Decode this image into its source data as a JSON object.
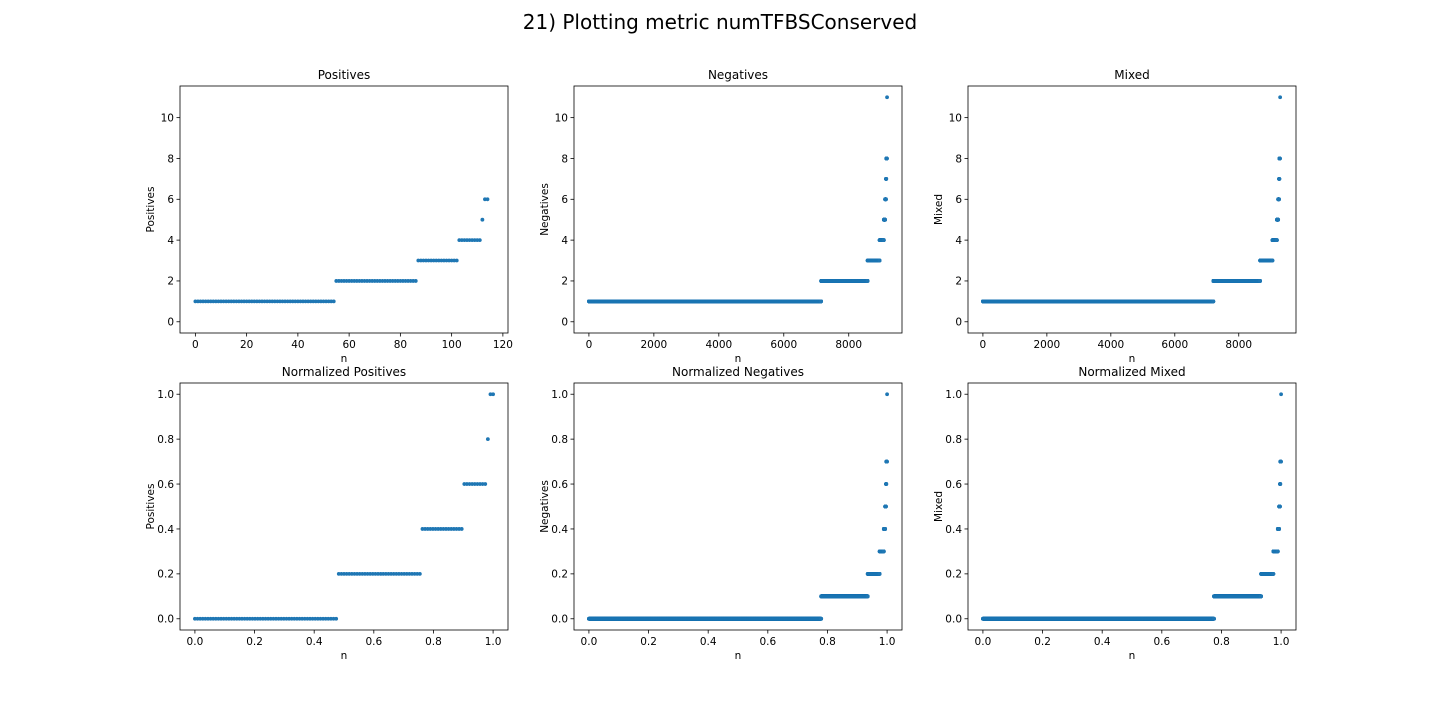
{
  "figure": {
    "title": "21) Plotting metric numTFBSConserved"
  },
  "chart_data": [
    {
      "type": "scatter",
      "title": "Positives",
      "xlabel": "n",
      "ylabel": "Positives",
      "xlim": [
        -6,
        122
      ],
      "ylim": [
        -0.55,
        11.55
      ],
      "xticks": [
        0,
        20,
        40,
        60,
        80,
        100,
        120
      ],
      "xtick_labels": [
        "0",
        "20",
        "40",
        "60",
        "80",
        "100",
        "120"
      ],
      "yticks": [
        0,
        2,
        4,
        6,
        8,
        10
      ],
      "ytick_labels": [
        "0",
        "2",
        "4",
        "6",
        "8",
        "10"
      ],
      "runs": [
        {
          "y": 1,
          "x_from": 0,
          "x_to": 54,
          "count": 55
        },
        {
          "y": 2,
          "x_from": 55,
          "x_to": 86,
          "count": 32
        },
        {
          "y": 3,
          "x_from": 87,
          "x_to": 102,
          "count": 16
        },
        {
          "y": 4,
          "x_from": 103,
          "x_to": 111,
          "count": 9
        },
        {
          "y": 5,
          "x_from": 112,
          "x_to": 112,
          "count": 1
        },
        {
          "y": 6,
          "x_from": 113,
          "x_to": 114,
          "count": 2
        }
      ],
      "grid": false,
      "color": "#1f77b4"
    },
    {
      "type": "scatter",
      "title": "Negatives",
      "xlabel": "n",
      "ylabel": "Negatives",
      "xlim": [
        -459,
        9640
      ],
      "ylim": [
        -0.55,
        11.55
      ],
      "xticks": [
        0,
        2000,
        4000,
        6000,
        8000
      ],
      "xtick_labels": [
        "0",
        "2000",
        "4000",
        "6000",
        "8000"
      ],
      "yticks": [
        0,
        2,
        4,
        6,
        8,
        10
      ],
      "ytick_labels": [
        "0",
        "2",
        "4",
        "6",
        "8",
        "10"
      ],
      "runs": [
        {
          "y": 1,
          "x_from": 0,
          "x_to": 7150,
          "count": 7151
        },
        {
          "y": 2,
          "x_from": 7151,
          "x_to": 8580,
          "count": 1430
        },
        {
          "y": 3,
          "x_from": 8581,
          "x_to": 8950,
          "count": 370
        },
        {
          "y": 4,
          "x_from": 8951,
          "x_to": 9080,
          "count": 130
        },
        {
          "y": 5,
          "x_from": 9081,
          "x_to": 9120,
          "count": 40
        },
        {
          "y": 6,
          "x_from": 9121,
          "x_to": 9145,
          "count": 25
        },
        {
          "y": 7,
          "x_from": 9146,
          "x_to": 9155,
          "count": 10
        },
        {
          "y": 8,
          "x_from": 9156,
          "x_to": 9175,
          "count": 20
        },
        {
          "y": 11,
          "x_from": 9180,
          "x_to": 9180,
          "count": 1
        }
      ],
      "grid": false,
      "color": "#1f77b4"
    },
    {
      "type": "scatter",
      "title": "Mixed",
      "xlabel": "n",
      "ylabel": "Mixed",
      "xlim": [
        -466,
        9790
      ],
      "ylim": [
        -0.55,
        11.55
      ],
      "xticks": [
        0,
        2000,
        4000,
        6000,
        8000
      ],
      "xtick_labels": [
        "0",
        "2000",
        "4000",
        "6000",
        "8000"
      ],
      "yticks": [
        0,
        2,
        4,
        6,
        8,
        10
      ],
      "ytick_labels": [
        "0",
        "2",
        "4",
        "6",
        "8",
        "10"
      ],
      "runs": [
        {
          "y": 1,
          "x_from": 0,
          "x_to": 7205,
          "count": 7206
        },
        {
          "y": 2,
          "x_from": 7206,
          "x_to": 8667,
          "count": 1462
        },
        {
          "y": 3,
          "x_from": 8668,
          "x_to": 9053,
          "count": 386
        },
        {
          "y": 4,
          "x_from": 9054,
          "x_to": 9192,
          "count": 139
        },
        {
          "y": 5,
          "x_from": 9193,
          "x_to": 9232,
          "count": 40
        },
        {
          "y": 6,
          "x_from": 9233,
          "x_to": 9259,
          "count": 27
        },
        {
          "y": 7,
          "x_from": 9260,
          "x_to": 9269,
          "count": 10
        },
        {
          "y": 8,
          "x_from": 9270,
          "x_to": 9289,
          "count": 20
        },
        {
          "y": 11,
          "x_from": 9294,
          "x_to": 9294,
          "count": 1
        }
      ],
      "grid": false,
      "color": "#1f77b4"
    },
    {
      "type": "scatter",
      "title": "Normalized Positives",
      "xlabel": "n",
      "ylabel": "Positives",
      "xlim": [
        -0.05,
        1.05
      ],
      "ylim": [
        -0.05,
        1.05
      ],
      "xticks": [
        0,
        0.2,
        0.4,
        0.6,
        0.8,
        1.0
      ],
      "xtick_labels": [
        "0.0",
        "0.2",
        "0.4",
        "0.6",
        "0.8",
        "1.0"
      ],
      "yticks": [
        0,
        0.2,
        0.4,
        0.6,
        0.8,
        1.0
      ],
      "ytick_labels": [
        "0.0",
        "0.2",
        "0.4",
        "0.6",
        "0.8",
        "1.0"
      ],
      "runs": [
        {
          "y": 0.0,
          "x_from": 0.0,
          "x_to": 0.4737,
          "count": 55
        },
        {
          "y": 0.2,
          "x_from": 0.4825,
          "x_to": 0.7544,
          "count": 32
        },
        {
          "y": 0.4,
          "x_from": 0.7632,
          "x_to": 0.8947,
          "count": 16
        },
        {
          "y": 0.6,
          "x_from": 0.9035,
          "x_to": 0.9737,
          "count": 9
        },
        {
          "y": 0.8,
          "x_from": 0.9825,
          "x_to": 0.9825,
          "count": 1
        },
        {
          "y": 1.0,
          "x_from": 0.9912,
          "x_to": 1.0,
          "count": 2
        }
      ],
      "grid": false,
      "color": "#1f77b4"
    },
    {
      "type": "scatter",
      "title": "Normalized Negatives",
      "xlabel": "n",
      "ylabel": "Negatives",
      "xlim": [
        -0.05,
        1.05
      ],
      "ylim": [
        -0.05,
        1.05
      ],
      "xticks": [
        0,
        0.2,
        0.4,
        0.6,
        0.8,
        1.0
      ],
      "xtick_labels": [
        "0.0",
        "0.2",
        "0.4",
        "0.6",
        "0.8",
        "1.0"
      ],
      "yticks": [
        0,
        0.2,
        0.4,
        0.6,
        0.8,
        1.0
      ],
      "ytick_labels": [
        "0.0",
        "0.2",
        "0.4",
        "0.6",
        "0.8",
        "1.0"
      ],
      "runs": [
        {
          "y": 0.0,
          "x_from": 0.0,
          "x_to": 0.779,
          "count": 7151
        },
        {
          "y": 0.1,
          "x_from": 0.779,
          "x_to": 0.935,
          "count": 1430
        },
        {
          "y": 0.2,
          "x_from": 0.935,
          "x_to": 0.975,
          "count": 370
        },
        {
          "y": 0.3,
          "x_from": 0.975,
          "x_to": 0.989,
          "count": 130
        },
        {
          "y": 0.4,
          "x_from": 0.989,
          "x_to": 0.9935,
          "count": 40
        },
        {
          "y": 0.5,
          "x_from": 0.9935,
          "x_to": 0.9962,
          "count": 25
        },
        {
          "y": 0.6,
          "x_from": 0.9962,
          "x_to": 0.9973,
          "count": 10
        },
        {
          "y": 0.7,
          "x_from": 0.9973,
          "x_to": 0.9995,
          "count": 20
        },
        {
          "y": 1.0,
          "x_from": 1.0,
          "x_to": 1.0,
          "count": 1
        }
      ],
      "grid": false,
      "color": "#1f77b4"
    },
    {
      "type": "scatter",
      "title": "Normalized Mixed",
      "xlabel": "n",
      "ylabel": "Mixed",
      "xlim": [
        -0.05,
        1.05
      ],
      "ylim": [
        -0.05,
        1.05
      ],
      "xticks": [
        0,
        0.2,
        0.4,
        0.6,
        0.8,
        1.0
      ],
      "xtick_labels": [
        "0.0",
        "0.2",
        "0.4",
        "0.6",
        "0.8",
        "1.0"
      ],
      "yticks": [
        0,
        0.2,
        0.4,
        0.6,
        0.8,
        1.0
      ],
      "ytick_labels": [
        "0.0",
        "0.2",
        "0.4",
        "0.6",
        "0.8",
        "1.0"
      ],
      "runs": [
        {
          "y": 0.0,
          "x_from": 0.0,
          "x_to": 0.775,
          "count": 7206
        },
        {
          "y": 0.1,
          "x_from": 0.775,
          "x_to": 0.933,
          "count": 1462
        },
        {
          "y": 0.2,
          "x_from": 0.933,
          "x_to": 0.974,
          "count": 386
        },
        {
          "y": 0.3,
          "x_from": 0.974,
          "x_to": 0.989,
          "count": 139
        },
        {
          "y": 0.4,
          "x_from": 0.989,
          "x_to": 0.9934,
          "count": 40
        },
        {
          "y": 0.5,
          "x_from": 0.9934,
          "x_to": 0.9962,
          "count": 27
        },
        {
          "y": 0.6,
          "x_from": 0.9962,
          "x_to": 0.9973,
          "count": 10
        },
        {
          "y": 0.7,
          "x_from": 0.9973,
          "x_to": 0.9995,
          "count": 20
        },
        {
          "y": 1.0,
          "x_from": 1.0,
          "x_to": 1.0,
          "count": 1
        }
      ],
      "grid": false,
      "color": "#1f77b4"
    }
  ]
}
